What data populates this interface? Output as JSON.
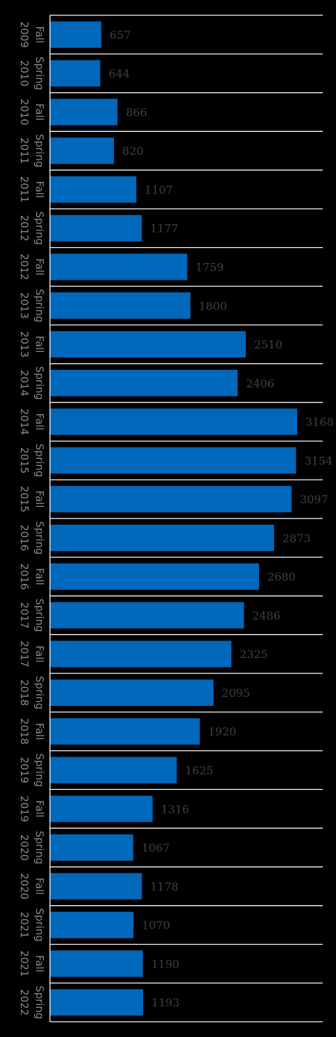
{
  "chart_data": {
    "type": "bar",
    "orientation": "horizontal",
    "title": "",
    "xlabel": "",
    "ylabel": "",
    "categories": [
      [
        "Fall",
        "2009"
      ],
      [
        "Spring",
        "2010"
      ],
      [
        "Fall",
        "2010"
      ],
      [
        "Spring",
        "2011"
      ],
      [
        "Fall",
        "2011"
      ],
      [
        "Spring",
        "2012"
      ],
      [
        "Fall",
        "2012"
      ],
      [
        "Spring",
        "2013"
      ],
      [
        "Fall",
        "2013"
      ],
      [
        "Spring",
        "2014"
      ],
      [
        "Fall",
        "2014"
      ],
      [
        "Spring",
        "2015"
      ],
      [
        "Fall",
        "2015"
      ],
      [
        "Spring",
        "2016"
      ],
      [
        "Fall",
        "2016"
      ],
      [
        "Spring",
        "2017"
      ],
      [
        "Fall",
        "2017"
      ],
      [
        "Spring",
        "2018"
      ],
      [
        "Fall",
        "2018"
      ],
      [
        "Spring",
        "2019"
      ],
      [
        "Fall",
        "2019"
      ],
      [
        "Spring",
        "2020"
      ],
      [
        "Fall",
        "2020"
      ],
      [
        "Spring",
        "2021"
      ],
      [
        "Fall",
        "2021"
      ],
      [
        "Spring",
        "2022"
      ]
    ],
    "values": [
      657,
      644,
      866,
      820,
      1107,
      1177,
      1759,
      1800,
      2510,
      2406,
      3168,
      3154,
      3097,
      2873,
      2680,
      2486,
      2325,
      2095,
      1920,
      1625,
      1316,
      1067,
      1178,
      1070,
      1190,
      1193
    ],
    "xlim": [
      0,
      3500
    ],
    "grid": true,
    "colors": {
      "bar": "#0068bb",
      "grid": "#ffffff",
      "value_label": "#404040",
      "category_label": "#8a8a8a",
      "background": "#000000"
    }
  }
}
